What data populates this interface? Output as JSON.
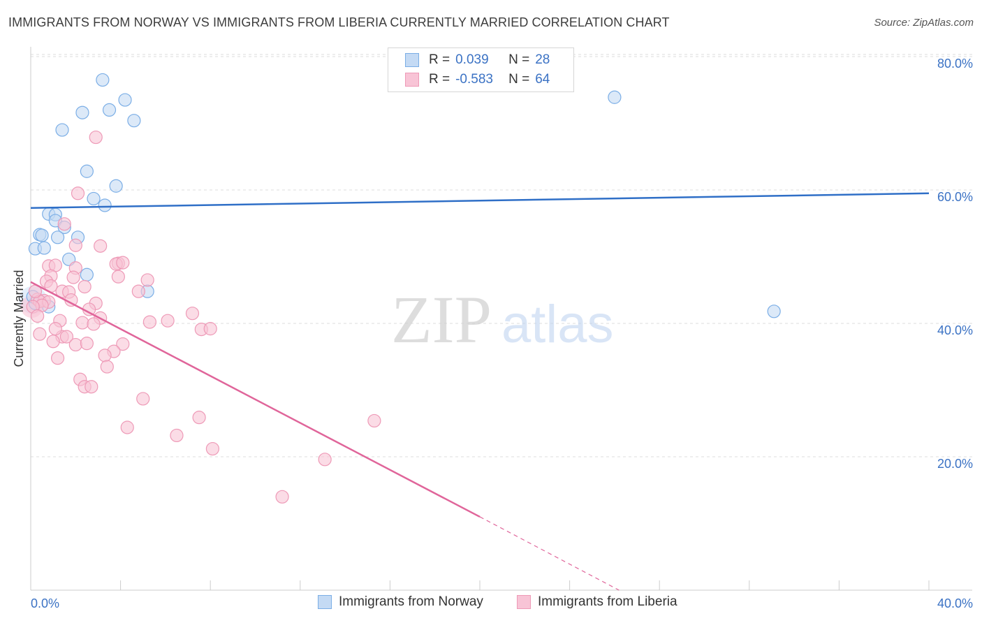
{
  "chart_data": {
    "type": "scatter",
    "title": "IMMIGRANTS FROM NORWAY VS IMMIGRANTS FROM LIBERIA CURRENTLY MARRIED CORRELATION CHART",
    "source": "Source: ZipAtlas.com",
    "ylabel": "Currently Married",
    "xlabel": "",
    "xlim": [
      0,
      40
    ],
    "ylim": [
      0,
      80
    ],
    "x_tick_labels": [
      "0.0%",
      "40.0%"
    ],
    "y_ticks": [
      20,
      40,
      60,
      80
    ],
    "y_tick_labels": [
      "20.0%",
      "40.0%",
      "60.0%",
      "80.0%"
    ],
    "grid": true,
    "watermark": {
      "bold": "ZIP",
      "light": "atlas"
    },
    "legend": {
      "placement": "top-center",
      "entries": [
        {
          "r_label": "R =",
          "r_value": "0.039",
          "n_label": "N =",
          "n_value": "28"
        },
        {
          "r_label": "R =",
          "r_value": "-0.583",
          "n_label": "N =",
          "n_value": "64"
        }
      ]
    },
    "series": [
      {
        "name": "Immigrants from Norway",
        "color": "#7baee6",
        "fill": "#c4daf4",
        "line_color": "#2f6fc7",
        "trend": {
          "x0": 0,
          "y0": 57.3,
          "x1": 40,
          "y1": 59.5
        },
        "points": [
          [
            3.2,
            76.5
          ],
          [
            4.2,
            73.5
          ],
          [
            3.5,
            72.0
          ],
          [
            2.3,
            71.6
          ],
          [
            4.6,
            70.4
          ],
          [
            1.4,
            69.0
          ],
          [
            2.5,
            62.8
          ],
          [
            3.8,
            60.6
          ],
          [
            2.8,
            58.7
          ],
          [
            3.3,
            57.7
          ],
          [
            0.8,
            56.4
          ],
          [
            1.1,
            56.3
          ],
          [
            1.1,
            55.4
          ],
          [
            1.5,
            54.4
          ],
          [
            0.4,
            53.3
          ],
          [
            0.5,
            53.2
          ],
          [
            1.2,
            52.9
          ],
          [
            2.1,
            52.9
          ],
          [
            0.2,
            51.2
          ],
          [
            0.6,
            51.3
          ],
          [
            1.7,
            49.6
          ],
          [
            2.5,
            47.3
          ],
          [
            5.2,
            44.8
          ],
          [
            0.2,
            43.0
          ],
          [
            0.8,
            42.5
          ],
          [
            0.1,
            44.0
          ],
          [
            26.0,
            73.9
          ],
          [
            33.1,
            41.8
          ]
        ]
      },
      {
        "name": "Immigrants from Liberia",
        "color": "#ee9ab7",
        "fill": "#f8c4d6",
        "line_color": "#e0659a",
        "trend": {
          "x0": 0,
          "y0": 46.2,
          "x1": 20,
          "y1": 11.0
        },
        "trend_dashed": {
          "x0": 20,
          "y0": 11.0,
          "x1": 26.2,
          "y1": 0
        },
        "points": [
          [
            2.9,
            67.9
          ],
          [
            2.1,
            59.5
          ],
          [
            1.5,
            54.9
          ],
          [
            2.0,
            51.7
          ],
          [
            3.1,
            51.6
          ],
          [
            2.0,
            48.3
          ],
          [
            3.9,
            49.0
          ],
          [
            0.8,
            48.6
          ],
          [
            1.1,
            48.7
          ],
          [
            3.8,
            48.9
          ],
          [
            0.9,
            47.1
          ],
          [
            3.9,
            47.0
          ],
          [
            0.7,
            46.3
          ],
          [
            5.2,
            46.5
          ],
          [
            0.9,
            45.6
          ],
          [
            2.4,
            45.5
          ],
          [
            1.4,
            44.8
          ],
          [
            1.7,
            44.7
          ],
          [
            4.8,
            44.8
          ],
          [
            0.3,
            43.6
          ],
          [
            0.6,
            43.4
          ],
          [
            0.4,
            43.3
          ],
          [
            0.8,
            43.2
          ],
          [
            1.8,
            43.5
          ],
          [
            0.5,
            42.7
          ],
          [
            2.9,
            43.0
          ],
          [
            2.6,
            42.1
          ],
          [
            0.1,
            42.5
          ],
          [
            3.1,
            40.8
          ],
          [
            1.3,
            40.4
          ],
          [
            2.3,
            40.1
          ],
          [
            2.8,
            39.9
          ],
          [
            5.3,
            40.2
          ],
          [
            6.1,
            40.4
          ],
          [
            7.2,
            41.5
          ],
          [
            7.6,
            39.1
          ],
          [
            8.0,
            39.2
          ],
          [
            0.4,
            38.4
          ],
          [
            1.4,
            38.0
          ],
          [
            1.6,
            38.0
          ],
          [
            1.0,
            37.3
          ],
          [
            2.0,
            36.8
          ],
          [
            2.5,
            37.0
          ],
          [
            4.1,
            36.9
          ],
          [
            3.7,
            35.8
          ],
          [
            3.3,
            35.2
          ],
          [
            1.2,
            34.8
          ],
          [
            3.4,
            33.5
          ],
          [
            2.2,
            31.6
          ],
          [
            2.4,
            30.5
          ],
          [
            2.7,
            30.5
          ],
          [
            5.0,
            28.7
          ],
          [
            7.5,
            25.9
          ],
          [
            15.3,
            25.4
          ],
          [
            4.3,
            24.4
          ],
          [
            6.5,
            23.2
          ],
          [
            8.1,
            21.2
          ],
          [
            13.1,
            19.6
          ],
          [
            11.2,
            14.0
          ],
          [
            1.1,
            39.2
          ],
          [
            0.3,
            41.1
          ],
          [
            1.9,
            46.9
          ],
          [
            0.2,
            44.8
          ],
          [
            4.1,
            49.1
          ]
        ]
      }
    ]
  }
}
